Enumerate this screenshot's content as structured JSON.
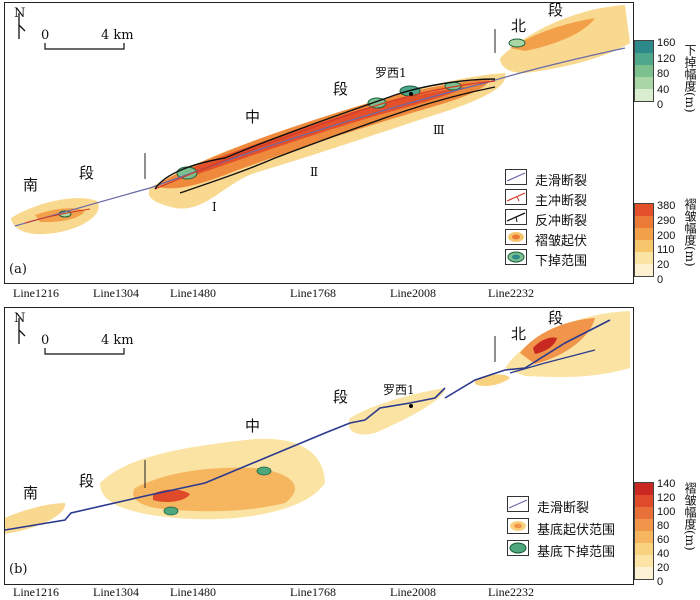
{
  "panel_a": {
    "label": "(a)",
    "north": "N",
    "scale": {
      "zero": "0",
      "end": "4 km"
    },
    "segments": {
      "south_a": "南",
      "south_b": "段",
      "middle_a": "中",
      "middle_b": "段",
      "north_a": "北",
      "north_b": "段"
    },
    "well": "罗西1",
    "zones": [
      "Ⅰ",
      "Ⅱ",
      "Ⅲ"
    ],
    "legend": [
      {
        "label": "走滑断裂",
        "symbol": "strike-slip-fault"
      },
      {
        "label": "主冲断裂",
        "symbol": "main-thrust-fault"
      },
      {
        "label": "反冲断裂",
        "symbol": "back-thrust-fault"
      },
      {
        "label": "褶皱起伏",
        "symbol": "fold-relief"
      },
      {
        "label": "下掉范围",
        "symbol": "downthrow-extent"
      }
    ],
    "colorbar_top": {
      "title": "下掉幅度(m)",
      "ticks": [
        "160",
        "120",
        "80",
        "40",
        "0"
      ],
      "colors": [
        "#2e8a8a",
        "#4ea78b",
        "#7cc08f",
        "#a9d6a4",
        "#d9edcf"
      ]
    },
    "colorbar_bottom": {
      "title": "褶皱幅度(m)",
      "ticks": [
        "380",
        "290",
        "200",
        "110",
        "20",
        "0"
      ],
      "colors": [
        "#e3502a",
        "#ec7a37",
        "#f2a14a",
        "#f7c66c",
        "#fbe3a3",
        "#fdf1cf"
      ]
    }
  },
  "panel_b": {
    "label": "(b)",
    "north": "N",
    "scale": {
      "zero": "0",
      "end": "4 km"
    },
    "segments": {
      "south_a": "南",
      "south_b": "段",
      "middle_a": "中",
      "middle_b": "段",
      "north_a": "北",
      "north_b": "段"
    },
    "well": "罗西1",
    "legend": [
      {
        "label": "走滑断裂",
        "symbol": "strike-slip-fault"
      },
      {
        "label": "基底起伏范围",
        "symbol": "basement-relief"
      },
      {
        "label": "基底下掉范围",
        "symbol": "basement-downthrow"
      }
    ],
    "colorbar": {
      "title": "褶皱幅度(m)",
      "ticks": [
        "140",
        "120",
        "100",
        "80",
        "60",
        "40",
        "20",
        "0"
      ],
      "colors": [
        "#c8281f",
        "#de4a2a",
        "#e8703a",
        "#f0954a",
        "#f5b65f",
        "#f9d27f",
        "#fbe4a6",
        "#fdf2d3"
      ]
    }
  },
  "seismic_lines": [
    "Line1216",
    "Line1304",
    "Line1480",
    "Line1768",
    "Line2008",
    "Line2232"
  ]
}
